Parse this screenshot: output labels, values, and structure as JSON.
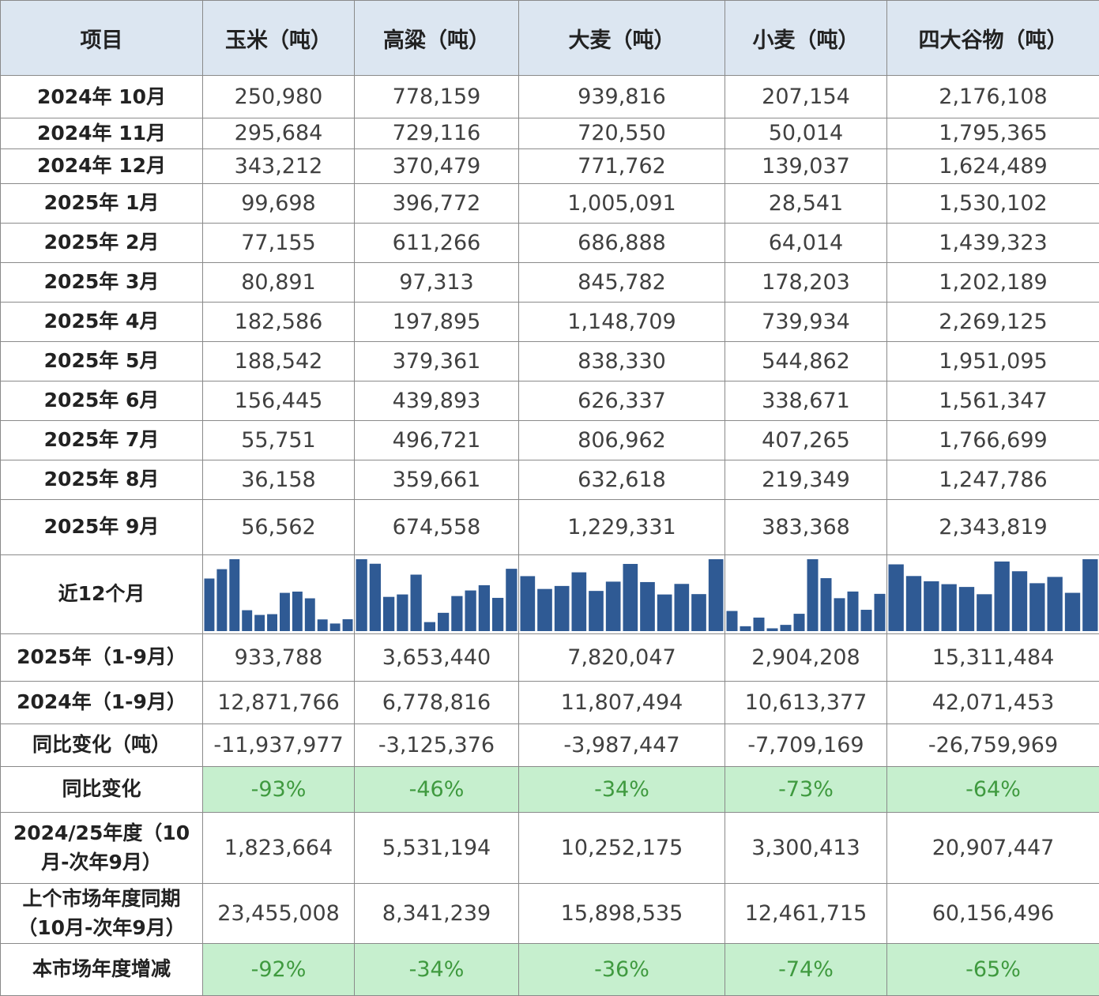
{
  "table": {
    "header": [
      "项目",
      "玉米（吨）",
      "高粱（吨）",
      "大麦（吨）",
      "小麦（吨）",
      "四大谷物（吨）"
    ],
    "rows": [
      [
        "2024年 10月",
        "250,980",
        "778,159",
        "939,816",
        "207,154",
        "2,176,108"
      ],
      [
        "2024年 11月",
        "295,684",
        "729,116",
        "720,550",
        "50,014",
        "1,795,365"
      ],
      [
        "2024年 12月",
        "343,212",
        "370,479",
        "771,762",
        "139,037",
        "1,624,489"
      ],
      [
        "2025年 1月",
        "99,698",
        "396,772",
        "1,005,091",
        "28,541",
        "1,530,102"
      ],
      [
        "2025年 2月",
        "77,155",
        "611,266",
        "686,888",
        "64,014",
        "1,439,323"
      ],
      [
        "2025年 3月",
        "80,891",
        "97,313",
        "845,782",
        "178,203",
        "1,202,189"
      ],
      [
        "2025年 4月",
        "182,586",
        "197,895",
        "1,148,709",
        "739,934",
        "2,269,125"
      ],
      [
        "2025年 5月",
        "188,542",
        "379,361",
        "838,330",
        "544,862",
        "1,951,095"
      ],
      [
        "2025年 6月",
        "156,445",
        "439,893",
        "626,337",
        "338,671",
        "1,561,347"
      ],
      [
        "2025年 7月",
        "55,751",
        "496,721",
        "806,962",
        "407,265",
        "1,766,699"
      ],
      [
        "2025年 8月",
        "36,158",
        "359,661",
        "632,618",
        "219,349",
        "1,247,786"
      ],
      [
        "2025年 9月",
        "56,562",
        "674,558",
        "1,229,331",
        "383,368",
        "2,343,819"
      ],
      [
        "近12个月"
      ],
      [
        "2025年（1-9月）",
        "933,788",
        "3,653,440",
        "7,820,047",
        "2,904,208",
        "15,311,484"
      ],
      [
        "2024年（1-9月）",
        "12,871,766",
        "6,778,816",
        "11,807,494",
        "10,613,377",
        "42,071,453"
      ],
      [
        "同比变化（吨）",
        "-11,937,977",
        "-3,125,376",
        "-3,987,447",
        "-7,709,169",
        "-26,759,969"
      ],
      [
        "同比变化",
        "-93%",
        "-46%",
        "-34%",
        "-73%",
        "-64%"
      ],
      [
        "2024/25年度（10月-次年9月）",
        "1,823,664",
        "5,531,194",
        "10,252,175",
        "3,300,413",
        "20,907,447"
      ],
      [
        "上个市场年度同期（10月-次年9月）",
        "23,455,008",
        "8,341,239",
        "15,898,535",
        "12,461,715",
        "60,156,496"
      ],
      [
        "本市场年度增减",
        "-92%",
        "-34%",
        "-36%",
        "-74%",
        "-65%"
      ]
    ]
  }
}
